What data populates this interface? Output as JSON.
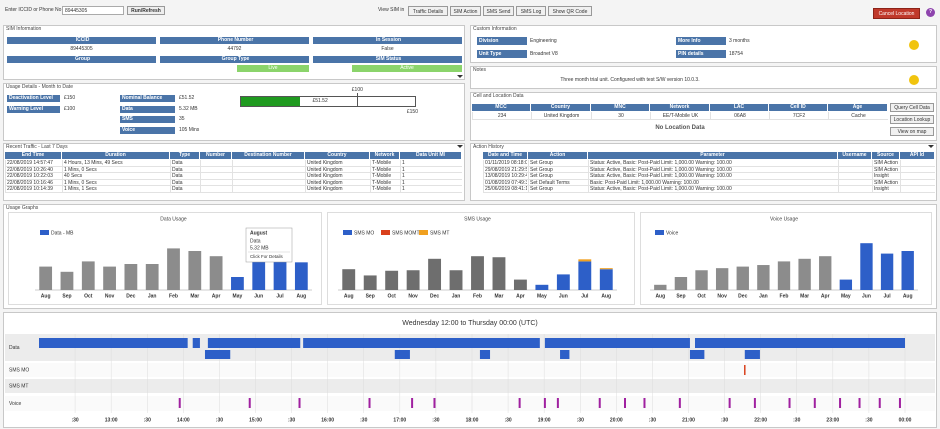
{
  "header": {
    "search_label": "Enter ICCID or Phone No",
    "search_value": "89445305",
    "run_button": "Run/Refresh",
    "view_label": "View SIM in",
    "tabs": [
      "Traffic Details",
      "SIM Action",
      "SMS Send",
      "SMS Log",
      "Show QR Code"
    ],
    "cancel_button": "Cancel Location",
    "help": "?"
  },
  "sim_info": {
    "title": "SIM Information",
    "fields": [
      {
        "label": "ICCID",
        "value": "89445305"
      },
      {
        "label": "Phone Number",
        "value": "44792"
      },
      {
        "label": "In Session",
        "value": "False"
      },
      {
        "label": "Group"
      },
      {
        "label": "Group Type",
        "value": "Live"
      },
      {
        "label": "SIM Status",
        "value": "Active"
      }
    ]
  },
  "custom_info": {
    "title": "Custom Information",
    "fields": [
      {
        "label": "Division",
        "value": "Engineering"
      },
      {
        "label": "Unit Type",
        "value": "Broadnet V8"
      },
      {
        "label": "More Info",
        "value": "3 months"
      },
      {
        "label": "PIN details",
        "value": "18754"
      }
    ]
  },
  "notes": {
    "title": "Notes",
    "text": "Three month trial unit. Configured with test S/W version 10.0.3."
  },
  "usage_details": {
    "title": "Usage Details - Month to Date",
    "fields": [
      {
        "label": "Deactivation Level",
        "value": "£150"
      },
      {
        "label": "Warning Level",
        "value": "£100"
      },
      {
        "label": "Nominal Balance",
        "value": "£51.52"
      },
      {
        "label": "Data",
        "value": "5.32 MB"
      },
      {
        "label": "SMS",
        "value": "35"
      },
      {
        "label": "Voice",
        "value": "105 Mins"
      }
    ],
    "balance_bar": {
      "value": 51.52,
      "value_label": "£51.52",
      "warning": 100,
      "warning_label": "£100",
      "max": 150,
      "max_label": "£150",
      "color": "#1f9a1f"
    }
  },
  "cell_location": {
    "title": "Cell and Location Data",
    "columns": [
      "MCC",
      "Country",
      "MNC",
      "Network",
      "LAC",
      "Cell ID",
      "Age"
    ],
    "rows": [
      [
        "234",
        "United Kingdom",
        "30",
        "EE/T-Mobile UK",
        "06A8",
        "7CF2",
        "Cache"
      ]
    ],
    "empty": "No Location Data",
    "buttons": [
      "Query Cell Data",
      "Location Lookup",
      "View on map"
    ]
  },
  "recent_traffic": {
    "title": "Recent Traffic - Last 7 Days",
    "columns": [
      "End Time",
      "Duration",
      "Type",
      "Number",
      "Destination Number",
      "Country",
      "Network",
      "Data Unit MI"
    ],
    "rows": [
      [
        "22/08/2019 14:57:47",
        "4 Hours, 13 Mins, 49 Secs",
        "Data",
        null,
        null,
        "United Kingdom",
        "T-Mobile",
        "1"
      ],
      [
        "22/08/2019 10:26:40",
        "1 Mins, 0 Secs",
        "Data",
        null,
        null,
        "United Kingdom",
        "T-Mobile",
        "1"
      ],
      [
        "22/08/2019 10:22:03",
        "40 Secs",
        "Data",
        null,
        null,
        "United Kingdom",
        "T-Mobile",
        "1"
      ],
      [
        "22/08/2019 10:16:46",
        "1 Mins, 0 Secs",
        "Data",
        null,
        null,
        "United Kingdom",
        "T-Mobile",
        "1"
      ],
      [
        "22/08/2019 10:14:39",
        "1 Mins, 1 Secs",
        "Data",
        null,
        null,
        "United Kingdom",
        "T-Mobile",
        "1"
      ]
    ]
  },
  "action_history": {
    "title": "Action History",
    "columns": [
      "Date and Time",
      "Action",
      "Parameter",
      "Username",
      "Source",
      "API Id"
    ],
    "rows": [
      [
        "01/11/2019 08:18:05",
        "Set Group",
        "Status: Active, Basic: Post-Paid Limit: 1,000.00 Warning: 100.00",
        null,
        "SIM Action",
        null
      ],
      [
        "29/08/2019 21:29:56",
        "Set Group",
        "Status: Active, Basic: Post-Paid Limit: 1,000.00 Warning: 100.00",
        null,
        "SIM Action",
        null
      ],
      [
        "13/08/2019 10:29:42",
        "Set Group",
        "Status: Active, Basic: Post-Paid Limit: 1,000.00 Warning: 100.00",
        null,
        "Insight",
        null
      ],
      [
        "01/08/2019 07:49:38",
        "Set Default Terms",
        "Basic: Post-Paid Limit: 1,000.00 Warning: 100.00",
        null,
        "SIM Action",
        null
      ],
      [
        "25/06/2019 08:41:17",
        "Set Group",
        "Status: Active, Basic: Post-Paid Limit: 1,000.00 Warning: 100.00",
        null,
        "Insight",
        null
      ]
    ]
  },
  "usage_graphs": {
    "title": "Usage Graphs",
    "charts": [
      {
        "type": "bar",
        "title": "Data Usage",
        "categories": [
          "Aug",
          "Sep",
          "Oct",
          "Nov",
          "Dec",
          "Jan",
          "Feb",
          "Mar",
          "Apr",
          "May",
          "Jun",
          "Jul",
          "Aug"
        ],
        "ylim": [
          0,
          10
        ],
        "bar_colors": [
          "#8c8c8c",
          "#8c8c8c",
          "#8c8c8c",
          "#8c8c8c",
          "#8c8c8c",
          "#8c8c8c",
          "#8c8c8c",
          "#8c8c8c",
          "#8c8c8c",
          "#2d5fc8",
          "#2d5fc8",
          "#2d5fc8",
          "#2d5fc8"
        ],
        "series": [
          {
            "name": "Data - MB",
            "color": "#2d5fc8",
            "values": [
              4.5,
              3.5,
              5.5,
              4.5,
              5,
              5,
              8,
              7.5,
              6.5,
              2.5,
              5.5,
              5.5,
              5.32
            ]
          }
        ]
      },
      {
        "type": "bar",
        "title": "SMS Usage",
        "categories": [
          "Aug",
          "Sep",
          "Oct",
          "Nov",
          "Dec",
          "Jan",
          "Feb",
          "Mar",
          "Apr",
          "May",
          "Jun",
          "Jul",
          "Aug"
        ],
        "ylim": [
          0,
          10
        ],
        "bar_colors": [
          "#6e6e6e",
          "#6e6e6e",
          "#6e6e6e",
          "#6e6e6e",
          "#6e6e6e",
          "#6e6e6e",
          "#6e6e6e",
          "#6e6e6e",
          "#6e6e6e",
          "#2d5fc8",
          "#2d5fc8",
          "#2d5fc8",
          "#2d5fc8"
        ],
        "series": [
          {
            "name": "SMS MO",
            "color": "#2d5fc8",
            "values": [
              4,
              2.8,
              3.7,
              3.8,
              6,
              3.8,
              6.5,
              6.3,
              2,
              1,
              3,
              5.5,
              4
            ]
          },
          {
            "name": "SMS MOMT",
            "color": "#d9401c",
            "values": [
              0,
              0,
              0,
              0,
              0,
              0,
              0,
              0,
              0,
              0,
              0,
              0,
              0
            ]
          },
          {
            "name": "SMS MT",
            "color": "#f0a020",
            "values": [
              0,
              0,
              0,
              0,
              0,
              0,
              0,
              0,
              0,
              0,
              0,
              0.4,
              0.2
            ]
          }
        ]
      },
      {
        "type": "bar",
        "title": "Voice Usage",
        "categories": [
          "Aug",
          "Sep",
          "Oct",
          "Nov",
          "Dec",
          "Jan",
          "Feb",
          "Mar",
          "Apr",
          "May",
          "Jun",
          "Jul",
          "Aug"
        ],
        "ylim": [
          0,
          10
        ],
        "bar_colors": [
          "#8c8c8c",
          "#8c8c8c",
          "#8c8c8c",
          "#8c8c8c",
          "#8c8c8c",
          "#8c8c8c",
          "#8c8c8c",
          "#8c8c8c",
          "#8c8c8c",
          "#2d5fc8",
          "#2d5fc8",
          "#2d5fc8",
          "#2d5fc8"
        ],
        "series": [
          {
            "name": "Voice",
            "color": "#2d5fc8",
            "values": [
              1,
              2.5,
              3.8,
              4.2,
              4.5,
              4.8,
              5.5,
              6,
              6.5,
              2,
              9,
              7,
              7.5
            ]
          }
        ]
      }
    ],
    "tooltip": {
      "title": "August",
      "series": "Data",
      "value": "5.32 MB",
      "link": "Click For Details"
    }
  },
  "timeline": {
    "title": "Wednesday 12:00 to Thursday 00:00 (UTC)",
    "rows": [
      "Data",
      "SMS MO",
      "SMS MT",
      "Voice"
    ],
    "xlim": [
      12,
      24
    ],
    "xticks": [
      {
        "value": 12.5,
        "label": ":30"
      },
      {
        "value": 13,
        "label": "13:00"
      },
      {
        "value": 13.5,
        "label": ":30"
      },
      {
        "value": 14,
        "label": "14:00"
      },
      {
        "value": 14.5,
        "label": ":30"
      },
      {
        "value": 15,
        "label": "15:00"
      },
      {
        "value": 15.5,
        "label": ":30"
      },
      {
        "value": 16,
        "label": "16:00"
      },
      {
        "value": 16.5,
        "label": ":30"
      },
      {
        "value": 17,
        "label": "17:00"
      },
      {
        "value": 17.5,
        "label": ":30"
      },
      {
        "value": 18,
        "label": "18:00"
      },
      {
        "value": 18.5,
        "label": ":30"
      },
      {
        "value": 19,
        "label": "19:00"
      },
      {
        "value": 19.5,
        "label": ":30"
      },
      {
        "value": 20,
        "label": "20:00"
      },
      {
        "value": 20.5,
        "label": ":30"
      },
      {
        "value": 21,
        "label": "21:00"
      },
      {
        "value": 21.5,
        "label": ":30"
      },
      {
        "value": 22,
        "label": "22:00"
      },
      {
        "value": 22.5,
        "label": ":30"
      },
      {
        "value": 23,
        "label": "23:00"
      },
      {
        "value": 23.5,
        "label": ":30"
      },
      {
        "value": 24,
        "label": "00:00"
      }
    ],
    "data_color": "#2d5fc8",
    "sms_color": "#d9401c",
    "voice_color": "#a020a0",
    "data_segments": [
      [
        12.0,
        14.06
      ],
      [
        14.13,
        14.23
      ],
      [
        14.34,
        15.62
      ],
      [
        15.66,
        18.94
      ],
      [
        19.01,
        21.02
      ],
      [
        21.09,
        24.0
      ]
    ],
    "data_segments_2": [
      [
        14.3,
        14.65
      ],
      [
        16.93,
        17.14
      ],
      [
        18.11,
        18.25
      ],
      [
        19.22,
        19.35
      ],
      [
        21.02,
        21.22
      ],
      [
        21.78,
        21.99
      ]
    ],
    "sms_mo_events": [
      21.78
    ],
    "voice_events": [
      13.95,
      14.92,
      15.61,
      16.58,
      17.17,
      17.48,
      18.66,
      19.01,
      19.19,
      19.77,
      20.12,
      20.39,
      20.88,
      21.57,
      21.92,
      22.4,
      22.75,
      23.1,
      23.37,
      23.65,
      23.93
    ]
  }
}
